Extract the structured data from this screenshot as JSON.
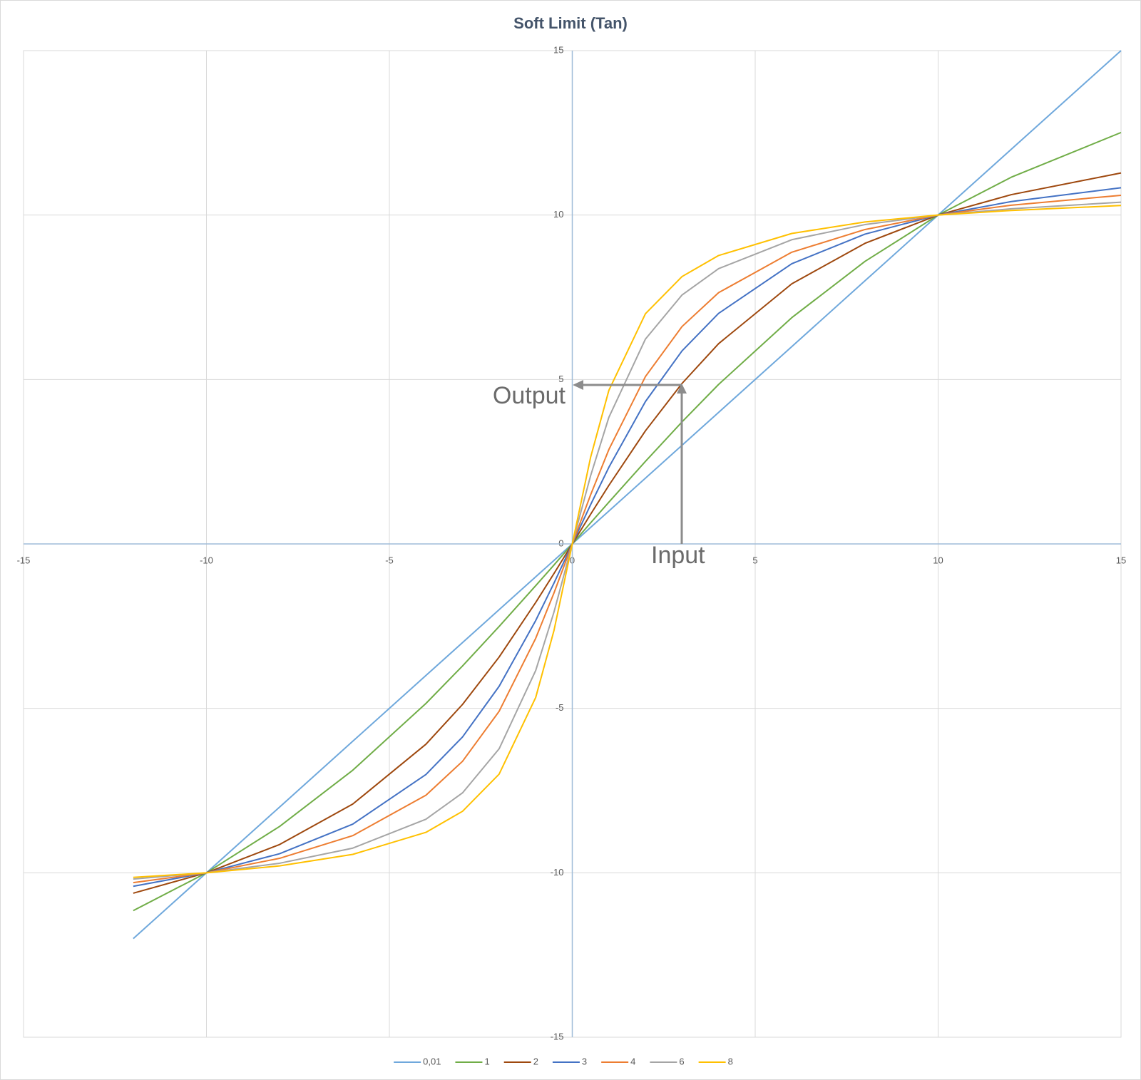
{
  "chart_data": {
    "type": "line",
    "title": "Soft Limit (Tan)",
    "x": [
      -12,
      -10,
      -8,
      -6,
      -4,
      -3,
      -2,
      -1,
      -0.5,
      0,
      0.5,
      1,
      2,
      3,
      4,
      6,
      8,
      10,
      12,
      15
    ],
    "series": [
      {
        "name": "0,01",
        "color": "#6fa8dc",
        "values": [
          -12,
          -10,
          -8,
          -6,
          -4,
          -3,
          -2,
          -1,
          -0.5,
          0,
          0.5,
          1,
          2,
          3,
          4,
          6,
          8,
          10,
          12,
          15
        ]
      },
      {
        "name": "1",
        "color": "#70ad47",
        "values": [
          -11.15,
          -10,
          -8.59,
          -6.88,
          -4.85,
          -3.71,
          -2.51,
          -1.27,
          -0.64,
          0,
          0.64,
          1.27,
          2.51,
          3.71,
          4.85,
          6.88,
          8.59,
          10,
          11.15,
          12.51
        ]
      },
      {
        "name": "2",
        "color": "#9e480e",
        "values": [
          -10.62,
          -10,
          -9.14,
          -7.91,
          -6.09,
          -4.88,
          -3.44,
          -1.78,
          -0.9,
          0,
          0.9,
          1.78,
          3.44,
          4.88,
          6.09,
          7.91,
          9.14,
          10,
          10.62,
          11.28
        ]
      },
      {
        "name": "3",
        "color": "#4472c4",
        "values": [
          -10.41,
          -10,
          -9.42,
          -8.52,
          -7.01,
          -5.87,
          -4.33,
          -2.33,
          -1.19,
          0,
          1.19,
          2.33,
          4.33,
          5.87,
          7.01,
          8.52,
          9.42,
          10,
          10.41,
          10.83
        ]
      },
      {
        "name": "4",
        "color": "#ed7d31",
        "values": [
          -10.3,
          -10,
          -9.56,
          -8.87,
          -7.64,
          -6.61,
          -5.09,
          -2.87,
          -1.49,
          0,
          1.49,
          2.87,
          5.09,
          6.61,
          7.64,
          8.87,
          9.56,
          10,
          10.3,
          10.6
        ]
      },
      {
        "name": "6",
        "color": "#a5a5a5",
        "values": [
          -10.19,
          -10,
          -9.71,
          -9.25,
          -8.37,
          -7.57,
          -6.23,
          -3.85,
          -2.07,
          0,
          2.07,
          3.85,
          6.23,
          7.57,
          8.37,
          9.25,
          9.71,
          10,
          10.19,
          10.39
        ]
      },
      {
        "name": "8",
        "color": "#ffc000",
        "values": [
          -10.14,
          -10,
          -9.79,
          -9.44,
          -8.77,
          -8.13,
          -7.0,
          -4.67,
          -2.63,
          0,
          2.63,
          4.67,
          7.0,
          8.13,
          8.77,
          9.44,
          9.79,
          10,
          10.14,
          10.29
        ]
      }
    ],
    "xlim": [
      -15,
      15
    ],
    "xticks": [
      -15,
      -10,
      -5,
      0,
      5,
      10,
      15
    ],
    "ylim": [
      -15,
      15
    ],
    "yticks": [
      -15,
      -10,
      -5,
      0,
      5,
      10,
      15
    ],
    "grid": true,
    "legend": "bottom",
    "annotations": [
      "Output",
      "Input"
    ]
  }
}
